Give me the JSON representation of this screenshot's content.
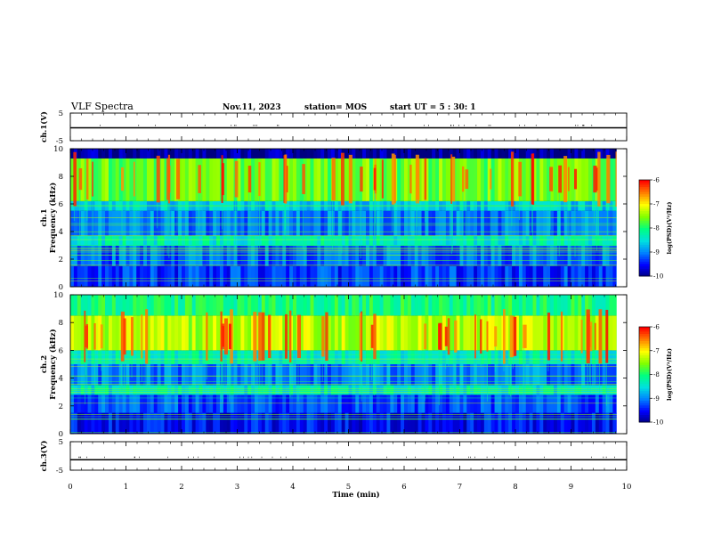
{
  "header": {
    "title": "VLF Spectra",
    "date": "Nov.11, 2023",
    "station": "station= MOS",
    "start": "start  UT =  5 : 30: 1"
  },
  "colors": {
    "cmap": [
      "#000080",
      "#0000ff",
      "#0080ff",
      "#00e0e0",
      "#00ff80",
      "#80ff00",
      "#ffff00",
      "#ff8000",
      "#ff0000",
      "#ffffff"
    ],
    "background": "#000010",
    "trace": "#000000"
  },
  "chart_data": [
    {
      "type": "line",
      "panel": "ch1-voltage",
      "ylabel": "ch.1(V)",
      "ylim": [
        -5,
        5
      ],
      "y_ticks": [
        "5",
        "-5"
      ],
      "x": [
        0,
        10
      ],
      "values": [
        0,
        0
      ]
    },
    {
      "type": "heatmap",
      "panel": "ch1-spectrogram",
      "ylabel": "ch.1\nFrequency  (kHz)",
      "xlim": [
        0,
        10
      ],
      "ylim": [
        0,
        10
      ],
      "y_ticks": [
        "0",
        "2",
        "4",
        "6",
        "8",
        "10"
      ],
      "colorbar": {
        "range": [
          -10,
          -6
        ],
        "ticks": [
          "-6",
          "-7",
          "-8",
          "-9",
          "-10"
        ],
        "label": "log(PSD)(V²/Hz)"
      },
      "bands": [
        {
          "from": 0,
          "to": 1.5,
          "level": -9.3
        },
        {
          "from": 1.5,
          "to": 3,
          "level": -9.1
        },
        {
          "from": 3,
          "to": 3.7,
          "level": -8.3
        },
        {
          "from": 3.7,
          "to": 5.5,
          "level": -9.0
        },
        {
          "from": 5.5,
          "to": 6.2,
          "level": -8.6
        },
        {
          "from": 6.2,
          "to": 9.3,
          "level": -7.6
        },
        {
          "from": 9.3,
          "to": 10,
          "level": -9.9
        }
      ],
      "bursts_center_khz": 7.8
    },
    {
      "type": "heatmap",
      "panel": "ch2-spectrogram",
      "ylabel": "ch.2\nFrequency  (kHz)",
      "xlim": [
        0,
        10
      ],
      "ylim": [
        0,
        10
      ],
      "y_ticks": [
        "0",
        "2",
        "4",
        "6",
        "8",
        "10"
      ],
      "colorbar": {
        "range": [
          -10,
          -6
        ],
        "ticks": [
          "-6",
          "-7",
          "-8",
          "-9",
          "-10"
        ],
        "label": "log(PSD)(V²/Hz)"
      },
      "bands": [
        {
          "from": 0,
          "to": 1.5,
          "level": -9.5
        },
        {
          "from": 1.5,
          "to": 2.8,
          "level": -9.2
        },
        {
          "from": 2.8,
          "to": 3.5,
          "level": -8.4
        },
        {
          "from": 3.5,
          "to": 5,
          "level": -9.0
        },
        {
          "from": 5,
          "to": 6,
          "level": -8.3
        },
        {
          "from": 6,
          "to": 8.5,
          "level": -7.3
        },
        {
          "from": 8.5,
          "to": 10,
          "level": -8.0
        }
      ],
      "bursts_center_khz": 7.0
    },
    {
      "type": "line",
      "panel": "ch3-voltage",
      "ylabel": "ch.3(V)",
      "xlabel": "Time  (min)",
      "ylim": [
        -5,
        5
      ],
      "y_ticks": [
        "5",
        "-5"
      ],
      "x": [
        0,
        10
      ],
      "values": [
        -1,
        -1
      ]
    }
  ],
  "x_ticks": [
    "0",
    "1",
    "2",
    "3",
    "4",
    "5",
    "6",
    "7",
    "8",
    "9",
    "10"
  ],
  "xlabel": "Time  (min)"
}
